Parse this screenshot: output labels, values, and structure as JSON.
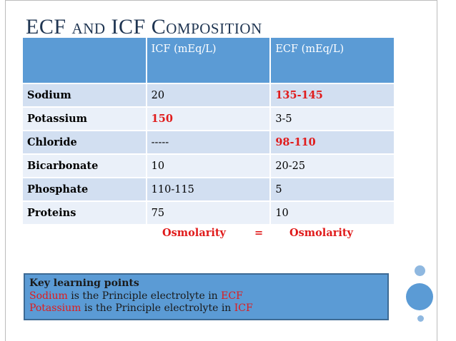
{
  "slide": {
    "title": {
      "part1": "ECF",
      "part2": "AND",
      "part3": "ICF",
      "part4": "C",
      "part5": "OMPOSITION"
    }
  },
  "table": {
    "headers": [
      "",
      "ICF (mEq/L)",
      "ECF  (mEq/L)"
    ],
    "rows": [
      {
        "name": "Sodium",
        "icf": "20",
        "ecf": "135-145"
      },
      {
        "name": "Potassium",
        "icf": "150",
        "ecf": "3-5"
      },
      {
        "name": "Chloride",
        "icf": "-----",
        "ecf": "98-110"
      },
      {
        "name": "Bicarbonate",
        "icf": "10",
        "ecf": "20-25"
      },
      {
        "name": "Phosphate",
        "icf": "110-115",
        "ecf": "5"
      },
      {
        "name": "Proteins",
        "icf": "75",
        "ecf": "10"
      }
    ],
    "highlighted_cells": [
      "Sodium.ecf",
      "Potassium.icf",
      "Chloride.ecf"
    ]
  },
  "osmolarity": {
    "left": "Osmolarity",
    "equals": "=",
    "right": "Osmolarity"
  },
  "key_points": {
    "heading": "Key learning points",
    "line1": {
      "term": "Sodium",
      "text": " is the Principle electrolyte in ",
      "target": "ECF"
    },
    "line2": {
      "term": "Potassium",
      "text": " is the Principle electrolyte in ",
      "target": "ICF"
    }
  },
  "colors": {
    "title": "#1f3552",
    "header_bg": "#5b9bd5",
    "row_odd": "#d2dff1",
    "row_even": "#eaf0f9",
    "highlight": "#e01b1b",
    "circle": "#5b9bd5"
  }
}
